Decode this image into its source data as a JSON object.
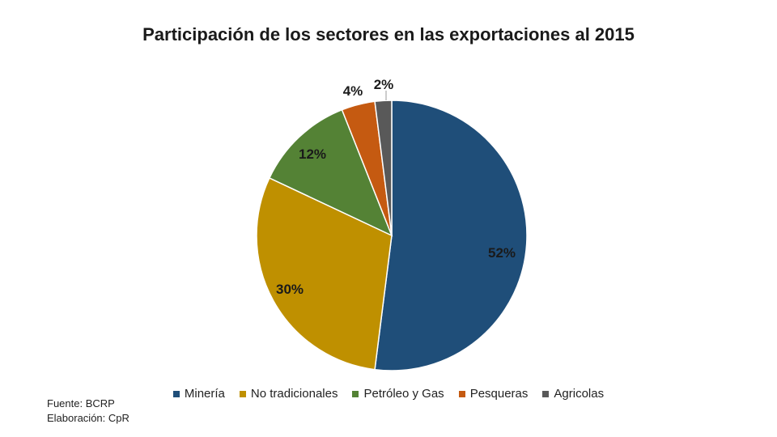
{
  "chart_data": {
    "type": "pie",
    "title": "Participación de los sectores en las exportaciones al 2015",
    "slices": [
      {
        "name": "Minería",
        "value": 52,
        "label": "52%",
        "color": "#1f4e79"
      },
      {
        "name": "No tradicionales",
        "value": 30,
        "label": "30%",
        "color": "#bf9000"
      },
      {
        "name": "Petróleo y Gas",
        "value": 12,
        "label": "12%",
        "color": "#548235"
      },
      {
        "name": "Pesqueras",
        "value": 4,
        "label": "4%",
        "color": "#c55a11"
      },
      {
        "name": "Agricolas",
        "value": 2,
        "label": "2%",
        "color": "#595959"
      }
    ],
    "legend_position": "bottom"
  },
  "footer": {
    "source": "Fuente: BCRP",
    "credit": "Elaboración: CpR"
  }
}
